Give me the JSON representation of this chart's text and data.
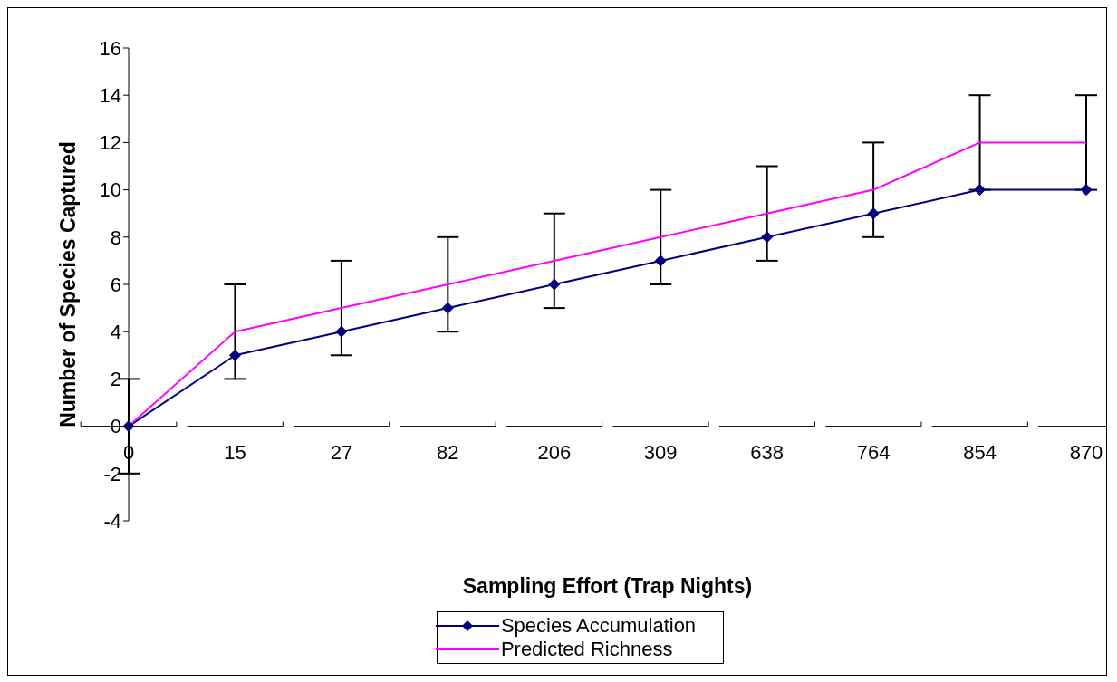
{
  "chart_data": {
    "type": "line",
    "xlabel": "Sampling Effort (Trap Nights)",
    "ylabel": "Number of Species Captured",
    "categories": [
      "0",
      "15",
      "27",
      "82",
      "206",
      "309",
      "638",
      "764",
      "854",
      "870"
    ],
    "series": [
      {
        "name": "Species Accumulation",
        "color": "#000080",
        "marker": "diamond",
        "values": [
          0,
          3,
          4,
          5,
          6,
          7,
          8,
          9,
          10,
          10
        ],
        "errors": [
          [
            -2,
            2
          ],
          [
            2,
            6
          ],
          [
            3,
            7
          ],
          [
            4,
            8
          ],
          [
            5,
            9
          ],
          [
            6,
            10
          ],
          [
            7,
            11
          ],
          [
            8,
            12
          ],
          [
            10,
            14
          ],
          [
            10,
            14
          ]
        ]
      },
      {
        "name": "Predicted Richness",
        "color": "#ff00ff",
        "marker": "none",
        "values": [
          0,
          4,
          5,
          6,
          7,
          8,
          9,
          10,
          12,
          12
        ]
      }
    ],
    "ylim": [
      -4,
      16
    ],
    "yticks": [
      -4,
      -2,
      0,
      2,
      4,
      6,
      8,
      10,
      12,
      14,
      16
    ],
    "legend": "bottom",
    "line_style": "solid"
  }
}
